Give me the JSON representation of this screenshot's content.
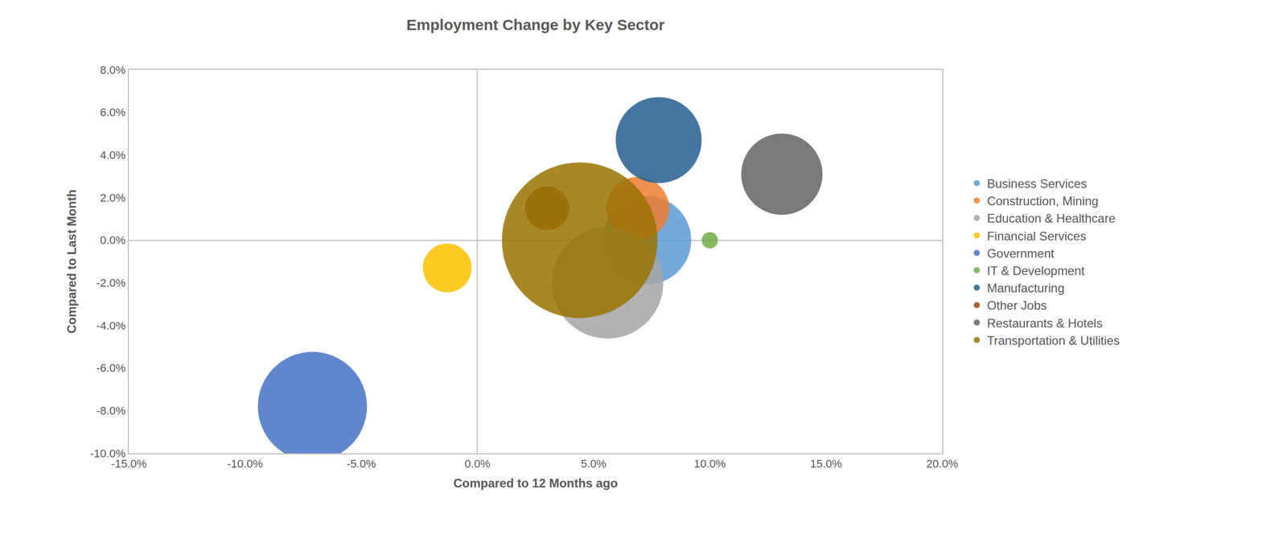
{
  "chart_data": {
    "type": "bubble",
    "title": "Employment Change by Key Sector",
    "x_label": "Compared to 12 Months ago",
    "y_label": "Compared to Last Month",
    "xlim": [
      -15,
      20
    ],
    "xticks": [
      {
        "value": -15,
        "label": "-15.0%"
      },
      {
        "value": -10,
        "label": "-10.0%"
      },
      {
        "value": -5,
        "label": "-5.0%"
      },
      {
        "value": 0,
        "label": "0.0%"
      },
      {
        "value": 5,
        "label": "5.0%"
      },
      {
        "value": 10,
        "label": "10.0%"
      },
      {
        "value": 15,
        "label": "15.0%"
      },
      {
        "value": 20,
        "label": "20.0%"
      }
    ],
    "ylim": [
      -10,
      8
    ],
    "yticks": [
      {
        "value": -10,
        "label": "-10.0%"
      },
      {
        "value": -8,
        "label": "-8.0%"
      },
      {
        "value": -6,
        "label": "-6.0%"
      },
      {
        "value": -4,
        "label": "-4.0%"
      },
      {
        "value": -2,
        "label": "-2.0%"
      },
      {
        "value": 0,
        "label": "0.0%"
      },
      {
        "value": 2,
        "label": "2.0%"
      },
      {
        "value": 4,
        "label": "4.0%"
      },
      {
        "value": 6,
        "label": "6.0%"
      },
      {
        "value": 8,
        "label": "8.0%"
      }
    ],
    "grid": false,
    "legend": "right",
    "series": [
      {
        "name": "Business Services",
        "color": "#5b9bd5",
        "x": [
          7.3
        ],
        "y": [
          0.0
        ],
        "size": [
          1444
        ]
      },
      {
        "name": "Construction, Mining",
        "color": "#ed7d31",
        "x": [
          6.9
        ],
        "y": [
          1.5
        ],
        "size": [
          729
        ]
      },
      {
        "name": "Education & Healthcare",
        "color": "#a5a5a5",
        "x": [
          5.6
        ],
        "y": [
          -2.0
        ],
        "size": [
          2304
        ]
      },
      {
        "name": "Financial Services",
        "color": "#ffc000",
        "x": [
          -1.3
        ],
        "y": [
          -1.3
        ],
        "size": [
          441
        ]
      },
      {
        "name": "Government",
        "color": "#4472c4",
        "x": [
          -7.1
        ],
        "y": [
          -7.8
        ],
        "size": [
          2209
        ]
      },
      {
        "name": "IT & Development",
        "color": "#70ad47",
        "x": [
          10.0
        ],
        "y": [
          0.0
        ],
        "size": [
          49
        ]
      },
      {
        "name": "Manufacturing",
        "color": "#255e91",
        "x": [
          7.8
        ],
        "y": [
          4.7
        ],
        "size": [
          1369
        ]
      },
      {
        "name": "Other Jobs",
        "color": "#9e480e",
        "x": [
          3.0
        ],
        "y": [
          1.5
        ],
        "size": [
          361
        ]
      },
      {
        "name": "Restaurants & Hotels",
        "color": "#636363",
        "x": [
          13.1
        ],
        "y": [
          3.1
        ],
        "size": [
          1225
        ]
      },
      {
        "name": "Transportation & Utilities",
        "color": "#997300",
        "x": [
          4.4
        ],
        "y": [
          0.0
        ],
        "size": [
          4489
        ]
      }
    ]
  }
}
